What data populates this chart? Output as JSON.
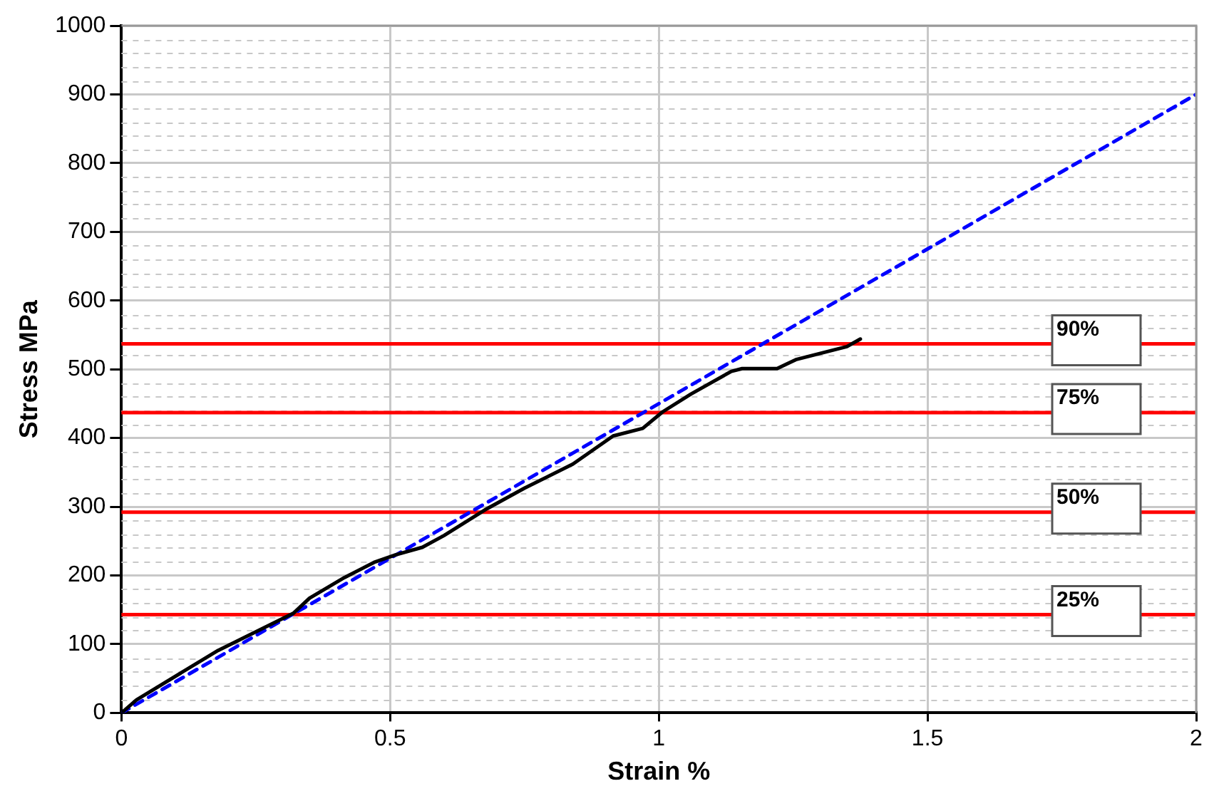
{
  "chart_data": {
    "type": "line",
    "xlabel": "Strain %",
    "ylabel": "Stress MPa",
    "series": [
      {
        "type": "line",
        "color": "#000000",
        "line_style": "solid",
        "x": [
          0,
          0.028,
          0.18,
          0.32,
          0.35,
          0.415,
          0.47,
          0.51,
          0.56,
          0.6,
          0.68,
          0.75,
          0.84,
          0.915,
          0.97,
          1.007,
          1.06,
          1.135,
          1.155,
          1.22,
          1.255,
          1.35,
          1.375
        ],
        "values": [
          0,
          19,
          91,
          145,
          167,
          197,
          219,
          230,
          241,
          258,
          297,
          327,
          362,
          403,
          414,
          438,
          464,
          497,
          501,
          501,
          514,
          533,
          544
        ]
      },
      {
        "type": "line",
        "color": "#0000ff",
        "line_style": "dashed",
        "x": [
          0,
          2
        ],
        "values": [
          0,
          900
        ]
      }
    ],
    "xlim": [
      0,
      2
    ],
    "xticks": [
      0,
      0.5,
      1,
      1.5,
      2
    ],
    "ylim": [
      0,
      1000
    ],
    "yticks": [
      0,
      100,
      200,
      300,
      400,
      500,
      600,
      700,
      800,
      900,
      1000
    ],
    "grid": true,
    "legend": false,
    "marker": "none",
    "ref_lines": [
      {
        "axis": "y",
        "value": 537,
        "color": "#ff0000"
      },
      {
        "axis": "y",
        "value": 437,
        "color": "#ff0000"
      },
      {
        "axis": "y",
        "value": 292,
        "color": "#ff0000"
      },
      {
        "axis": "y",
        "value": 143,
        "color": "#ff0000"
      }
    ],
    "annotations": [
      {
        "text": "90%",
        "y": 537
      },
      {
        "text": "75%",
        "y": 437
      },
      {
        "text": "50%",
        "y": 292
      },
      {
        "text": "25%",
        "y": 143
      }
    ]
  }
}
